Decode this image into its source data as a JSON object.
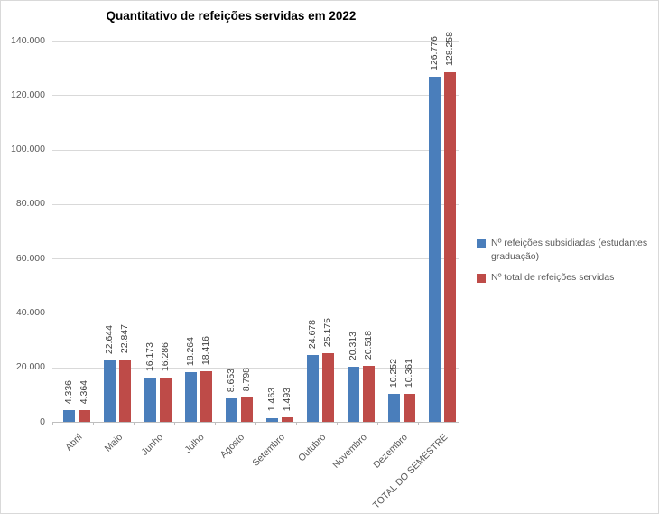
{
  "chart_data": {
    "type": "bar",
    "title": "Quantitativo de refeições servidas em 2022",
    "categories": [
      "Abril",
      "Maio",
      "Junho",
      "Julho",
      "Agosto",
      "Setembro",
      "Outubro",
      "Novembro",
      "Dezembro",
      "TOTAL DO SEMESTRE"
    ],
    "series": [
      {
        "name": "Nº refeições subsidiadas (estudantes graduação)",
        "color": "#4A7EBB",
        "values": [
          4336,
          22644,
          16173,
          18264,
          8653,
          1463,
          24678,
          20313,
          10252,
          126776
        ]
      },
      {
        "name": "Nº total de refeições servidas",
        "color": "#BE4B48",
        "values": [
          4364,
          22847,
          16286,
          18416,
          8798,
          1493,
          25175,
          20518,
          10361,
          128258
        ]
      }
    ],
    "ylim": [
      0,
      140000
    ],
    "ytick_interval": 20000,
    "ytick_labels": [
      "0",
      "20.000",
      "40.000",
      "60.000",
      "80.000",
      "100.000",
      "120.000",
      "140.000"
    ],
    "grid": true,
    "legend_position": "right",
    "data_labels": "rotated-90-above-bars",
    "number_format": "thousands-dot"
  },
  "colors": {
    "grid": "#d9d9d9",
    "axis": "#bfbfbf",
    "axis_text": "#595959",
    "data_label_text": "#404040",
    "title_text": "#000000",
    "background": "#ffffff"
  }
}
